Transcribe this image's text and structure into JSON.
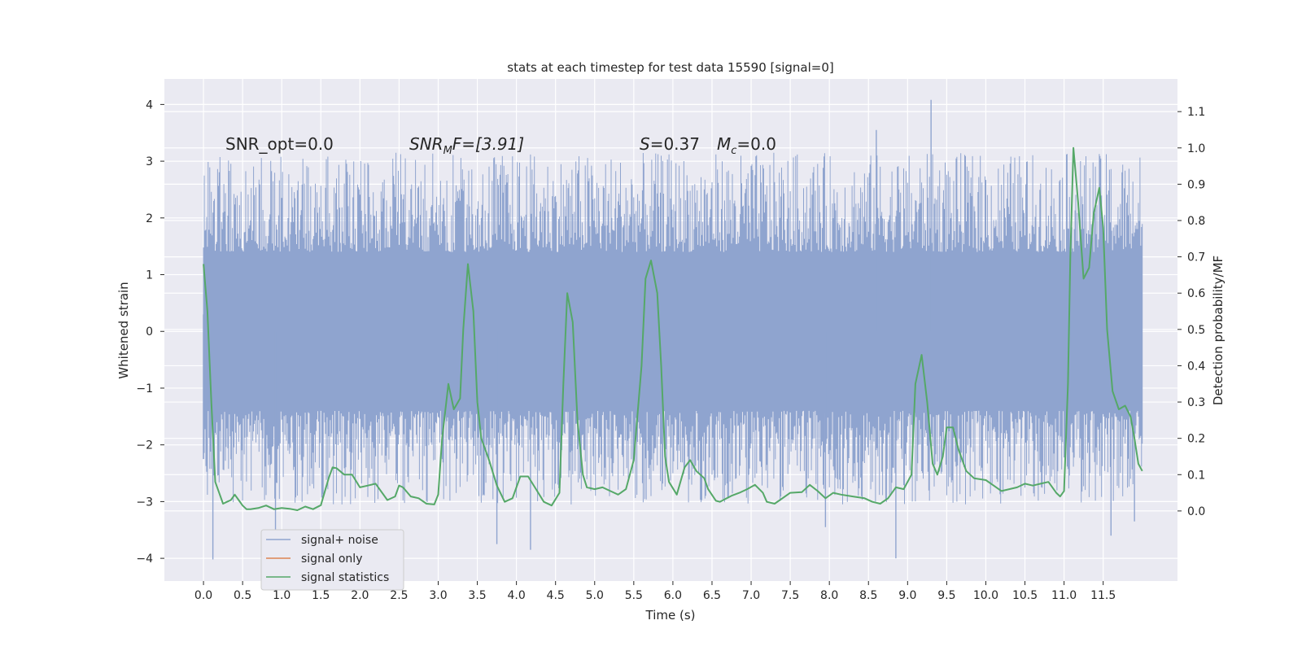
{
  "chart_data": {
    "type": "line",
    "title": "stats at each timestep for test data 15590 [signal=0]",
    "xlabel": "Time (s)",
    "ylabel_left": "Whitened strain",
    "ylabel_right": "Detection probability/MF",
    "xlim": [
      -0.5,
      12.45
    ],
    "ylim_left": [
      -4.4,
      4.45
    ],
    "ylim_right": [
      -0.193,
      1.19
    ],
    "x_ticks": [
      0.0,
      0.5,
      1.0,
      1.5,
      2.0,
      2.5,
      3.0,
      3.5,
      4.0,
      4.5,
      5.0,
      5.5,
      6.0,
      6.5,
      7.0,
      7.5,
      8.0,
      8.5,
      9.0,
      9.5,
      10.0,
      10.5,
      11.0,
      11.5
    ],
    "x_tick_labels": [
      "0.0",
      "0.5",
      "1.0",
      "1.5",
      "2.0",
      "2.5",
      "3.0",
      "3.5",
      "4.0",
      "4.5",
      "5.0",
      "5.5",
      "6.0",
      "6.5",
      "7.0",
      "7.5",
      "8.0",
      "8.5",
      "9.0",
      "9.5",
      "10.0",
      "10.5",
      "11.0",
      "11.5"
    ],
    "y_left_ticks": [
      -4,
      -3,
      -2,
      -1,
      0,
      1,
      2,
      3,
      4
    ],
    "y_left_tick_labels": [
      "−4",
      "−3",
      "−2",
      "−1",
      "0",
      "1",
      "2",
      "3",
      "4"
    ],
    "y_right_ticks": [
      0.0,
      0.1,
      0.2,
      0.3,
      0.4,
      0.5,
      0.6,
      0.7,
      0.8,
      0.9,
      1.0,
      1.1
    ],
    "y_right_tick_labels": [
      "0.0",
      "0.1",
      "0.2",
      "0.3",
      "0.4",
      "0.5",
      "0.6",
      "0.7",
      "0.8",
      "0.9",
      "1.0",
      "1.1"
    ],
    "grid": true,
    "legend_position": "lower-left",
    "annotations": {
      "snr_opt": "SNR_opt=0.0",
      "snr_mf_base": "SNR",
      "snr_mf_sub": "M",
      "snr_mf_rest": "F=[3.91]",
      "s_base": "S",
      "s_rest": "=0.37",
      "mc_base": "M",
      "mc_sub": "c",
      "mc_rest": "=0.0"
    },
    "colors": {
      "background": "#eaeaf2",
      "grid": "#ffffff",
      "noise": "#8fa4cf",
      "signal_only": "#dd8452",
      "statistics": "#55a868"
    },
    "series": [
      {
        "name": "signal+ noise",
        "axis": "left",
        "kind": "noise",
        "x_range": [
          0.0,
          12.0
        ],
        "core_band": [
          -1.25,
          1.3
        ],
        "peak_max": 4.08,
        "peak_min": -4.02,
        "notable_spikes": [
          {
            "x": 0.12,
            "y": -4.02
          },
          {
            "x": 0.92,
            "y": -3.9
          },
          {
            "x": 3.75,
            "y": -3.75
          },
          {
            "x": 4.18,
            "y": -3.85
          },
          {
            "x": 8.85,
            "y": -4.0
          },
          {
            "x": 9.3,
            "y": 4.08
          },
          {
            "x": 11.6,
            "y": -3.6
          },
          {
            "x": 11.9,
            "y": -3.35
          },
          {
            "x": 7.95,
            "y": -3.45
          },
          {
            "x": 8.6,
            "y": 3.55
          }
        ]
      },
      {
        "name": "signal only",
        "axis": "left",
        "values": []
      },
      {
        "name": "signal statistics",
        "axis": "right",
        "points": [
          [
            0.0,
            0.68
          ],
          [
            0.05,
            0.55
          ],
          [
            0.1,
            0.3
          ],
          [
            0.15,
            0.08
          ],
          [
            0.2,
            0.05
          ],
          [
            0.25,
            0.02
          ],
          [
            0.3,
            0.025
          ],
          [
            0.35,
            0.03
          ],
          [
            0.4,
            0.045
          ],
          [
            0.45,
            0.03
          ],
          [
            0.5,
            0.015
          ],
          [
            0.55,
            0.005
          ],
          [
            0.6,
            0.005
          ],
          [
            0.7,
            0.008
          ],
          [
            0.8,
            0.015
          ],
          [
            0.9,
            0.005
          ],
          [
            1.0,
            0.008
          ],
          [
            1.1,
            0.006
          ],
          [
            1.2,
            0.002
          ],
          [
            1.3,
            0.012
          ],
          [
            1.4,
            0.005
          ],
          [
            1.5,
            0.016
          ],
          [
            1.6,
            0.09
          ],
          [
            1.65,
            0.12
          ],
          [
            1.7,
            0.118
          ],
          [
            1.8,
            0.1
          ],
          [
            1.9,
            0.1
          ],
          [
            2.0,
            0.065
          ],
          [
            2.1,
            0.07
          ],
          [
            2.2,
            0.075
          ],
          [
            2.35,
            0.03
          ],
          [
            2.45,
            0.04
          ],
          [
            2.5,
            0.07
          ],
          [
            2.55,
            0.065
          ],
          [
            2.65,
            0.04
          ],
          [
            2.75,
            0.035
          ],
          [
            2.85,
            0.02
          ],
          [
            2.95,
            0.018
          ],
          [
            3.0,
            0.045
          ],
          [
            3.05,
            0.2
          ],
          [
            3.13,
            0.35
          ],
          [
            3.2,
            0.28
          ],
          [
            3.28,
            0.31
          ],
          [
            3.32,
            0.5
          ],
          [
            3.38,
            0.68
          ],
          [
            3.45,
            0.55
          ],
          [
            3.5,
            0.3
          ],
          [
            3.55,
            0.2
          ],
          [
            3.65,
            0.14
          ],
          [
            3.75,
            0.07
          ],
          [
            3.85,
            0.025
          ],
          [
            3.95,
            0.035
          ],
          [
            4.05,
            0.095
          ],
          [
            4.15,
            0.095
          ],
          [
            4.25,
            0.06
          ],
          [
            4.35,
            0.025
          ],
          [
            4.45,
            0.015
          ],
          [
            4.55,
            0.05
          ],
          [
            4.6,
            0.35
          ],
          [
            4.65,
            0.6
          ],
          [
            4.72,
            0.52
          ],
          [
            4.78,
            0.25
          ],
          [
            4.85,
            0.1
          ],
          [
            4.9,
            0.065
          ],
          [
            5.0,
            0.06
          ],
          [
            5.1,
            0.065
          ],
          [
            5.2,
            0.055
          ],
          [
            5.3,
            0.045
          ],
          [
            5.4,
            0.06
          ],
          [
            5.5,
            0.14
          ],
          [
            5.6,
            0.4
          ],
          [
            5.65,
            0.64
          ],
          [
            5.72,
            0.69
          ],
          [
            5.8,
            0.6
          ],
          [
            5.85,
            0.4
          ],
          [
            5.9,
            0.15
          ],
          [
            5.95,
            0.08
          ],
          [
            6.05,
            0.045
          ],
          [
            6.15,
            0.12
          ],
          [
            6.22,
            0.14
          ],
          [
            6.3,
            0.11
          ],
          [
            6.4,
            0.09
          ],
          [
            6.45,
            0.06
          ],
          [
            6.55,
            0.028
          ],
          [
            6.6,
            0.025
          ],
          [
            6.75,
            0.042
          ],
          [
            6.85,
            0.05
          ],
          [
            6.95,
            0.06
          ],
          [
            7.05,
            0.072
          ],
          [
            7.15,
            0.05
          ],
          [
            7.2,
            0.025
          ],
          [
            7.3,
            0.02
          ],
          [
            7.4,
            0.035
          ],
          [
            7.5,
            0.05
          ],
          [
            7.65,
            0.052
          ],
          [
            7.75,
            0.072
          ],
          [
            7.85,
            0.055
          ],
          [
            7.95,
            0.035
          ],
          [
            8.05,
            0.05
          ],
          [
            8.15,
            0.045
          ],
          [
            8.3,
            0.04
          ],
          [
            8.45,
            0.035
          ],
          [
            8.55,
            0.025
          ],
          [
            8.65,
            0.02
          ],
          [
            8.75,
            0.035
          ],
          [
            8.85,
            0.065
          ],
          [
            8.95,
            0.06
          ],
          [
            9.05,
            0.1
          ],
          [
            9.1,
            0.35
          ],
          [
            9.18,
            0.43
          ],
          [
            9.25,
            0.3
          ],
          [
            9.32,
            0.13
          ],
          [
            9.38,
            0.1
          ],
          [
            9.45,
            0.15
          ],
          [
            9.5,
            0.23
          ],
          [
            9.58,
            0.23
          ],
          [
            9.65,
            0.17
          ],
          [
            9.75,
            0.11
          ],
          [
            9.85,
            0.09
          ],
          [
            10.0,
            0.085
          ],
          [
            10.1,
            0.07
          ],
          [
            10.2,
            0.055
          ],
          [
            10.3,
            0.06
          ],
          [
            10.4,
            0.065
          ],
          [
            10.5,
            0.075
          ],
          [
            10.6,
            0.07
          ],
          [
            10.7,
            0.075
          ],
          [
            10.8,
            0.08
          ],
          [
            10.9,
            0.05
          ],
          [
            10.95,
            0.04
          ],
          [
            11.0,
            0.055
          ],
          [
            11.05,
            0.35
          ],
          [
            11.08,
            0.7
          ],
          [
            11.12,
            1.0
          ],
          [
            11.18,
            0.85
          ],
          [
            11.25,
            0.64
          ],
          [
            11.32,
            0.67
          ],
          [
            11.38,
            0.82
          ],
          [
            11.45,
            0.89
          ],
          [
            11.5,
            0.78
          ],
          [
            11.55,
            0.5
          ],
          [
            11.62,
            0.33
          ],
          [
            11.7,
            0.28
          ],
          [
            11.78,
            0.29
          ],
          [
            11.85,
            0.26
          ],
          [
            11.9,
            0.2
          ],
          [
            11.95,
            0.13
          ],
          [
            12.0,
            0.11
          ]
        ]
      }
    ]
  }
}
